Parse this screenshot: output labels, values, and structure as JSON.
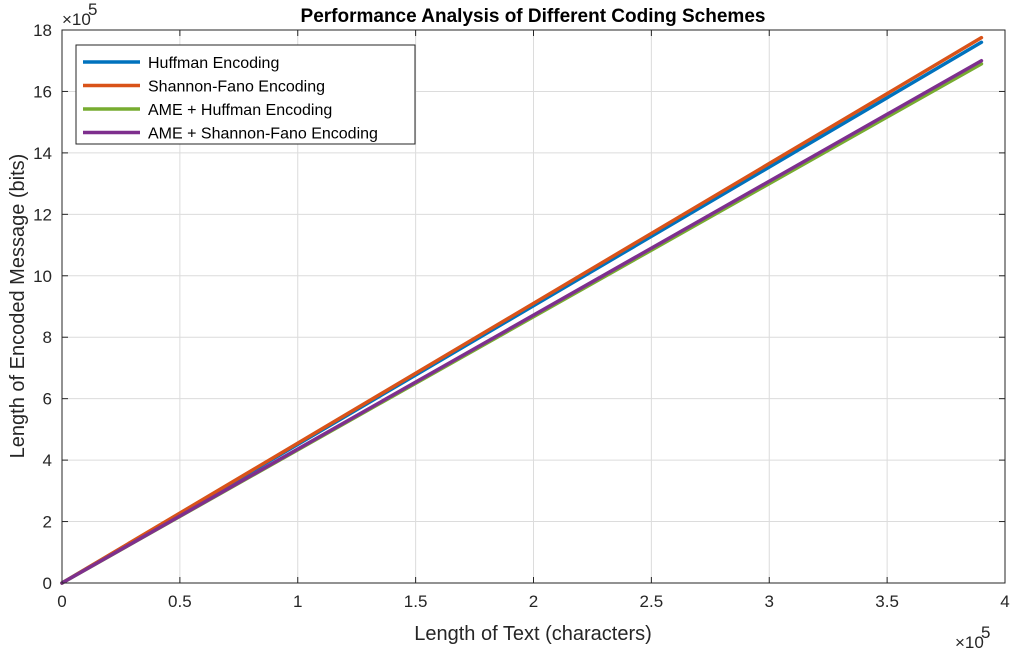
{
  "chart_data": {
    "type": "line",
    "title": "Performance Analysis of Different Coding Schemes",
    "xlabel": "Length of Text (characters)",
    "ylabel": "Length of Encoded Message (bits)",
    "x_multiplier": "×10",
    "x_multiplier_exp": "5",
    "y_multiplier": "×10",
    "y_multiplier_exp": "5",
    "xlim": [
      0,
      4
    ],
    "ylim": [
      0,
      18
    ],
    "xticks": [
      0,
      0.5,
      1,
      1.5,
      2,
      2.5,
      3,
      3.5,
      4
    ],
    "xtick_labels": [
      "0",
      "0.5",
      "1",
      "1.5",
      "2",
      "2.5",
      "3",
      "3.5",
      "4"
    ],
    "yticks": [
      0,
      2,
      4,
      6,
      8,
      10,
      12,
      14,
      16,
      18
    ],
    "ytick_labels": [
      "0",
      "2",
      "4",
      "6",
      "8",
      "10",
      "12",
      "14",
      "16",
      "18"
    ],
    "grid": true,
    "legend_position": "top-left",
    "series": [
      {
        "name": "Huffman Encoding",
        "color": "#0072BD",
        "x": [
          0,
          3.9
        ],
        "y": [
          0,
          17.6
        ]
      },
      {
        "name": "Shannon-Fano Encoding",
        "color": "#D95319",
        "x": [
          0,
          3.9
        ],
        "y": [
          0,
          17.75
        ]
      },
      {
        "name": "AME + Huffman Encoding",
        "color": "#77AC30",
        "x": [
          0,
          3.9
        ],
        "y": [
          0,
          16.9
        ]
      },
      {
        "name": "AME + Shannon-Fano Encoding",
        "color": "#7E2F8E",
        "x": [
          0,
          3.9
        ],
        "y": [
          0,
          17.0
        ]
      }
    ]
  }
}
